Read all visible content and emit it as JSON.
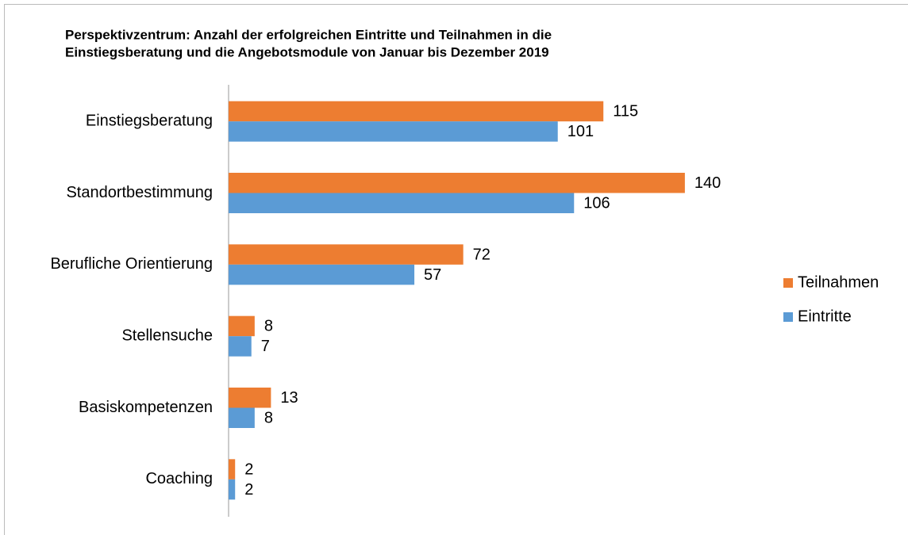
{
  "chart_data": {
    "type": "bar",
    "orientation": "horizontal",
    "title": [
      "Perspektivzentrum: Anzahl der erfolgreichen Eintritte und Teilnahmen in die",
      "Einstiegsberatung und die Angebotsmodule von Januar bis Dezember 2019"
    ],
    "categories": [
      "Einstiegsberatung",
      "Standortbestimmung",
      "Berufliche Orientierung",
      "Stellensuche",
      "Basiskompetenzen",
      "Coaching"
    ],
    "series": [
      {
        "name": "Teilnahmen",
        "color": "#ed7d31",
        "values": [
          115,
          140,
          72,
          8,
          13,
          2
        ]
      },
      {
        "name": "Eintritte",
        "color": "#5b9bd5",
        "values": [
          101,
          106,
          57,
          7,
          8,
          2
        ]
      }
    ],
    "xlim": [
      0,
      160
    ],
    "legend": "right"
  }
}
